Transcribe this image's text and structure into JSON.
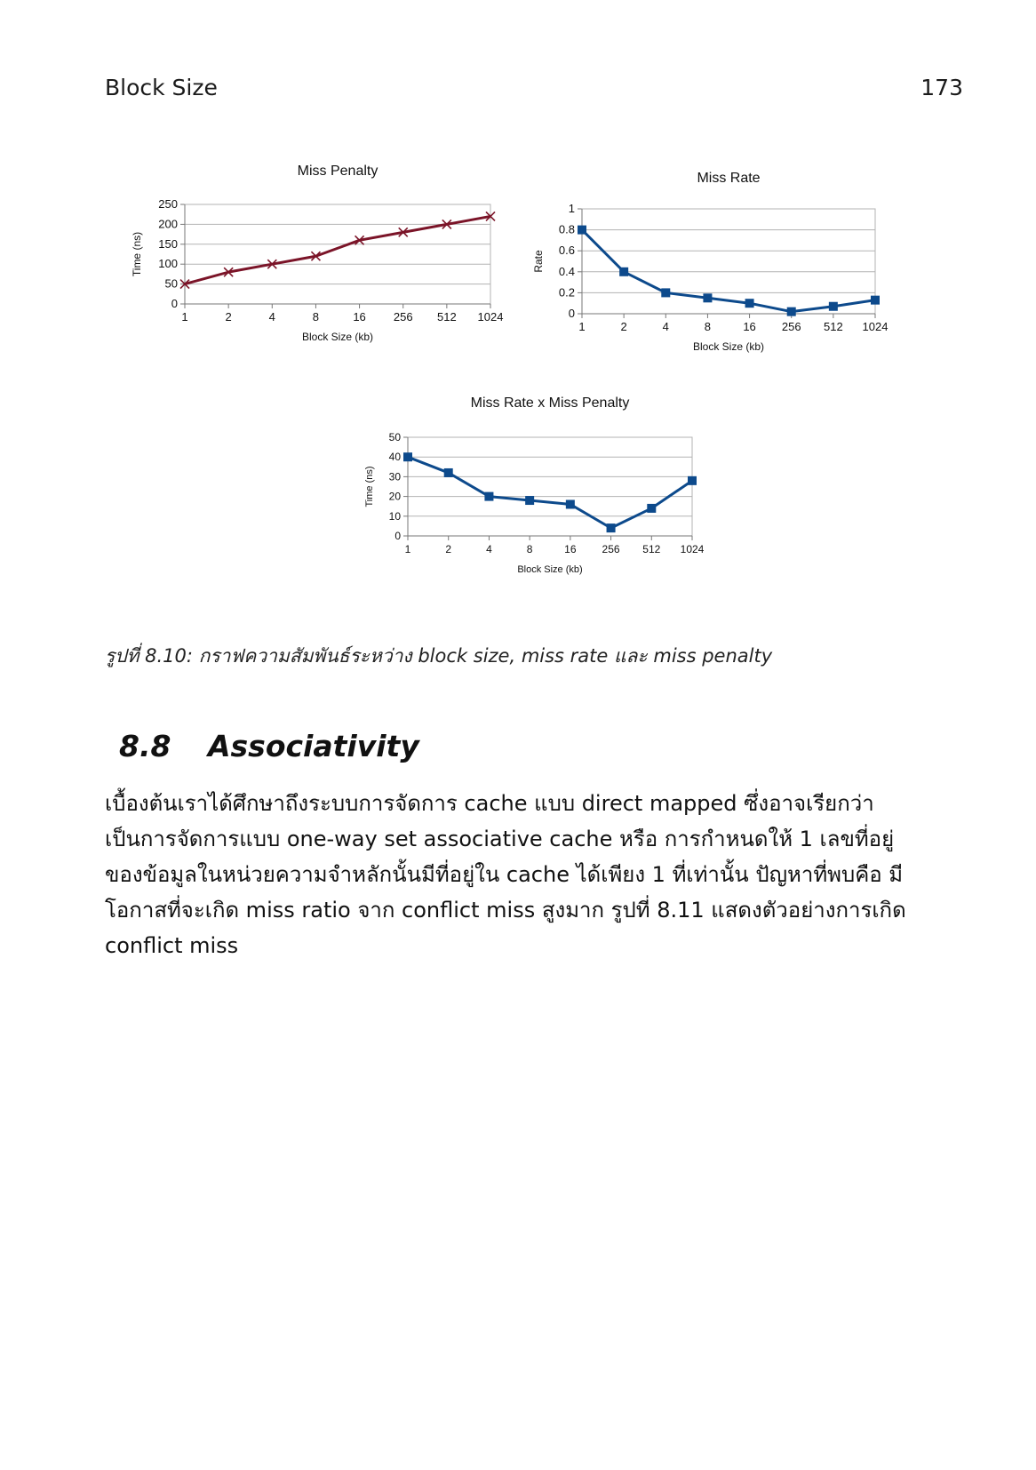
{
  "header": {
    "running_title": "Block Size",
    "page_number": "173"
  },
  "chart_data": [
    {
      "type": "line",
      "title": "Miss Penalty",
      "xlabel": "Block Size (kb)",
      "ylabel": "Time (ns)",
      "categories": [
        "1",
        "2",
        "4",
        "8",
        "16",
        "256",
        "512",
        "1024"
      ],
      "series": [
        {
          "values": [
            50,
            80,
            100,
            120,
            160,
            180,
            200,
            220
          ],
          "color": "#7b1428",
          "marker": "x"
        }
      ],
      "ylim": [
        0,
        250
      ],
      "yticks": [
        0,
        50,
        100,
        150,
        200,
        250
      ],
      "ytick_labels": [
        "0",
        "50",
        "100",
        "150",
        "200",
        "250"
      ],
      "grid": true
    },
    {
      "type": "line",
      "title": "Miss Rate",
      "xlabel": "Block Size (kb)",
      "ylabel": "Rate",
      "categories": [
        "1",
        "2",
        "4",
        "8",
        "16",
        "256",
        "512",
        "1024"
      ],
      "series": [
        {
          "values": [
            0.8,
            0.4,
            0.2,
            0.15,
            0.1,
            0.02,
            0.07,
            0.13
          ],
          "color": "#0d4a8c",
          "marker": "square"
        }
      ],
      "ylim": [
        0,
        1
      ],
      "yticks": [
        0,
        0.2,
        0.4,
        0.6,
        0.8,
        1
      ],
      "ytick_labels": [
        "0",
        "0.2",
        "0.4",
        "0.6",
        "0.8",
        "1"
      ],
      "grid": true
    },
    {
      "type": "line",
      "title": "Miss Rate x Miss Penalty",
      "xlabel": "Block Size (kb)",
      "ylabel": "Time (ns)",
      "categories": [
        "1",
        "2",
        "4",
        "8",
        "16",
        "256",
        "512",
        "1024"
      ],
      "series": [
        {
          "values": [
            40,
            32,
            20,
            18,
            16,
            4,
            14,
            28
          ],
          "color": "#0d4a8c",
          "marker": "square"
        }
      ],
      "ylim": [
        0,
        50
      ],
      "yticks": [
        0,
        10,
        20,
        30,
        40,
        50
      ],
      "ytick_labels": [
        "0",
        "10",
        "20",
        "30",
        "40",
        "50"
      ],
      "grid": true
    }
  ],
  "figure": {
    "caption": "รูปที่ 8.10: กราฟความสัมพันธ์ระหว่าง block size, miss rate และ miss penalty"
  },
  "section": {
    "number": "8.8",
    "title": "Associativity"
  },
  "paragraph": {
    "lines": [
      "เบื้องต้นเราได้ศึกษาถึงระบบการจัดการ cache แบบ direct mapped ซึ่งอาจเรียกว่า",
      "เป็นการจัดการแบบ  one-way set associative cache หรือ การกำหนดให้ 1 เลขที่อยู่",
      "ของข้อมูลในหน่วยความจำหลักนั้นมีที่อยู่ใน cache ได้เพียง 1 ที่เท่านั้น ปัญหาที่พบคือ มี",
      "โอกาสที่จะเกิด miss ratio จาก conflict miss สูงมาก รูปที่ 8.11 แสดงตัวอย่างการเกิด",
      "conflict miss"
    ]
  }
}
